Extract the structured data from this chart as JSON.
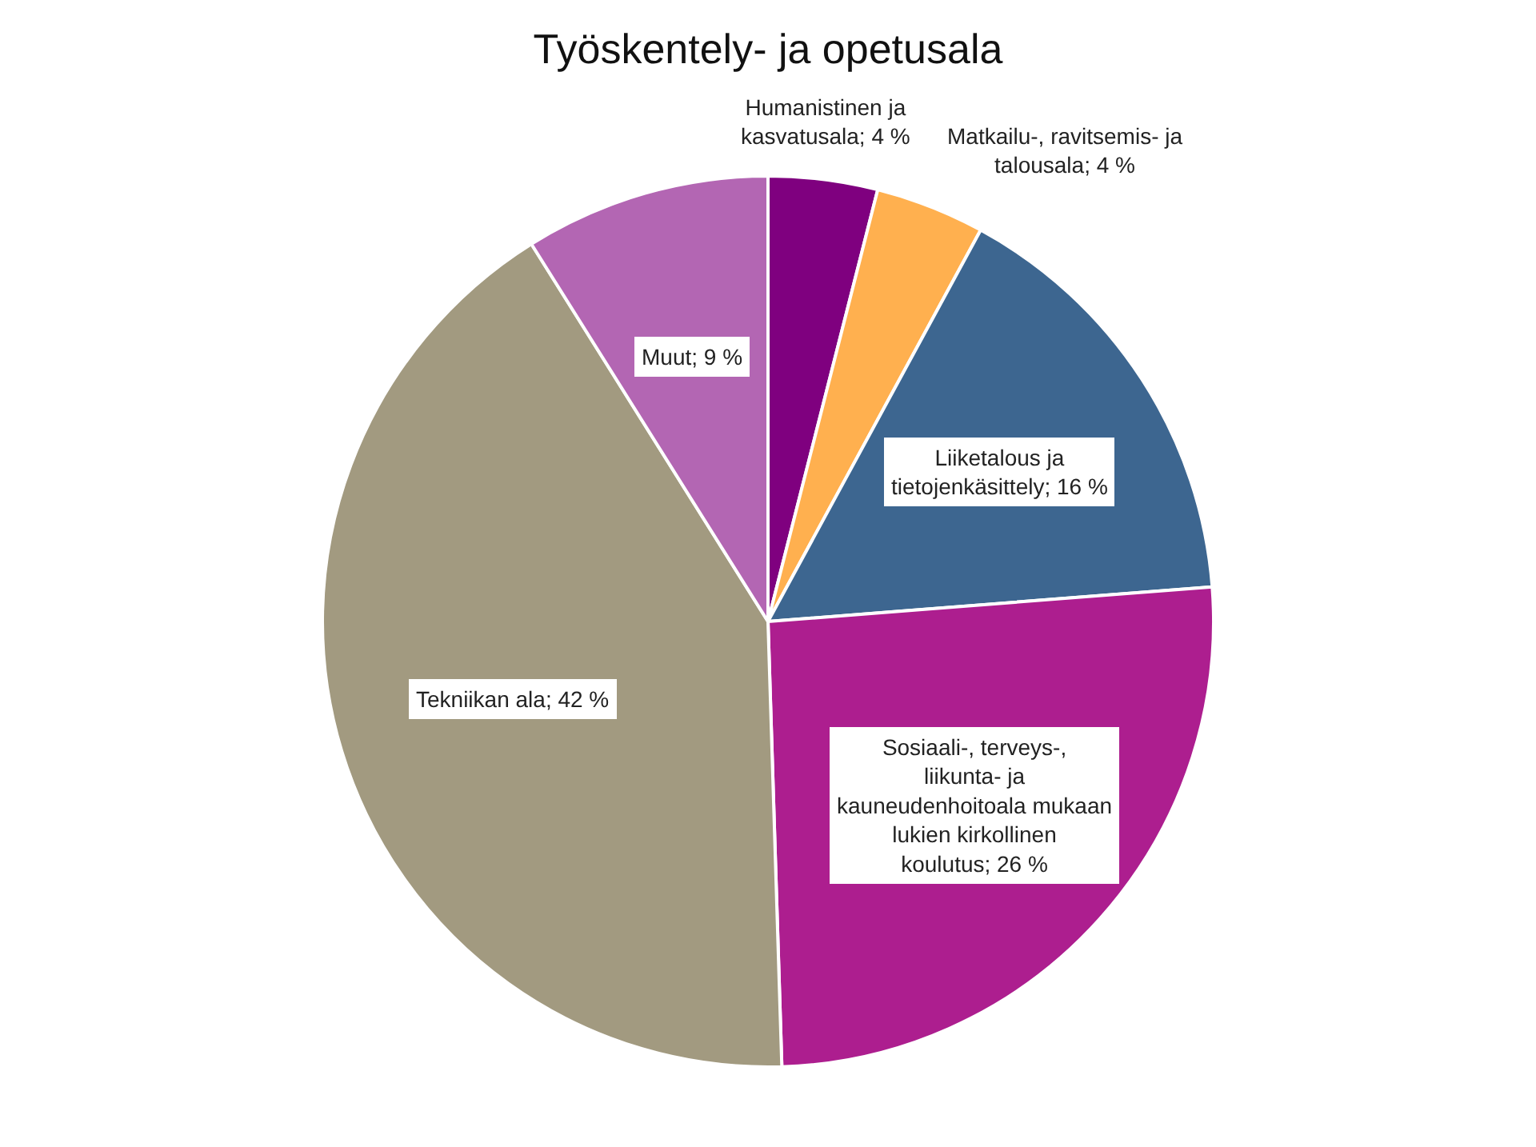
{
  "chart_data": {
    "type": "pie",
    "title": "Työskentely- ja opetusala",
    "categories": [
      "Humanistinen ja kasvatusala",
      "Matkailu-, ravitsemis- ja talousala",
      "Liiketalous ja tietojenkäsittely",
      "Sosiaali-, terveys-, liikunta- ja kauneudenhoitoala mukaan lukien kirkollinen koulutus",
      "Tekniikan ala",
      "Muut"
    ],
    "values": [
      4,
      4,
      16,
      26,
      42,
      9
    ],
    "value_labels": [
      "4 %",
      "4 %",
      "16 %",
      "26 %",
      "42 %",
      "9 %"
    ],
    "colors": [
      "#7f007f",
      "#ffb04f",
      "#3d6690",
      "#ad1e8f",
      "#a29a80",
      "#b366b3"
    ],
    "legend": false
  }
}
